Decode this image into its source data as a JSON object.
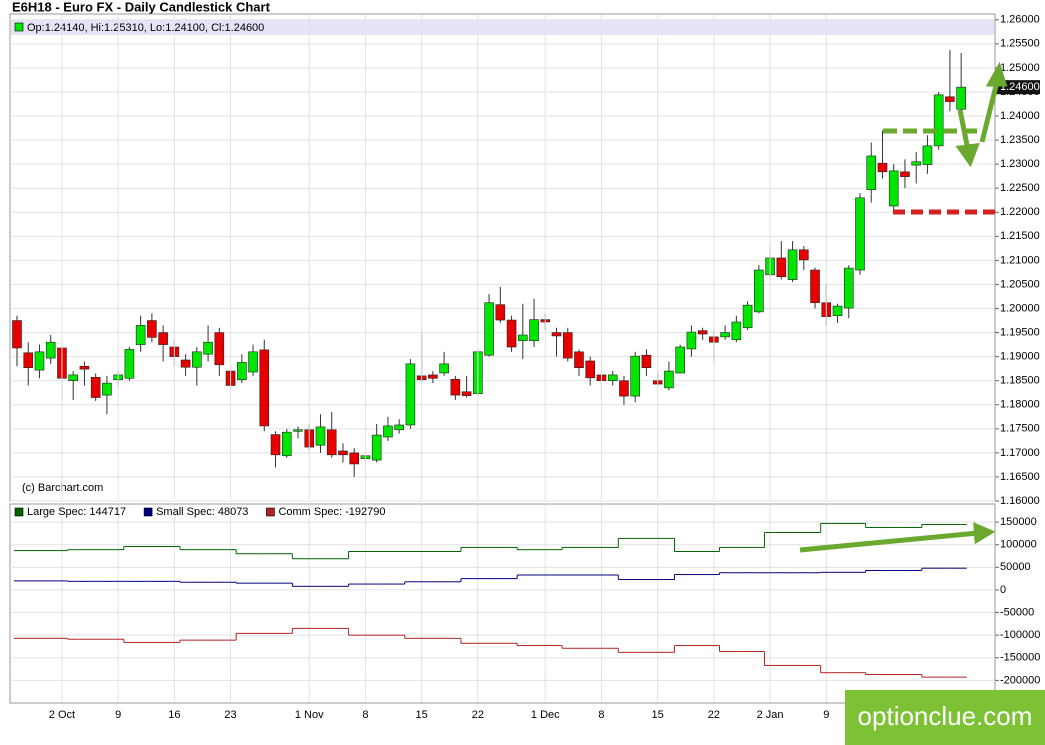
{
  "chart_data": [
    {
      "type": "candlestick",
      "title": "E6H18 - Euro FX - Daily Candlestick Chart",
      "legend": "Op:1.24140, Hi:1.25310, Lo:1.24100, Cl:1.24600",
      "source": "(c) Barchart.com",
      "last_price_label": "1.24600",
      "up_color": "#00e600",
      "down_color": "#e60000",
      "open": [
        1.1975,
        1.1908,
        1.1872,
        1.1897,
        1.1918,
        1.185,
        1.188,
        1.1857,
        1.182,
        1.1852,
        1.1855,
        1.1925,
        1.1975,
        1.195,
        1.192,
        1.1893,
        1.1878,
        1.1905,
        1.195,
        1.187,
        1.1852,
        1.1868,
        1.1914,
        1.1738,
        1.1694,
        1.1745,
        1.1748,
        1.1716,
        1.1748,
        1.1704,
        1.17,
        1.1688,
        1.1685,
        1.1733,
        1.1748,
        1.1758,
        1.186,
        1.1862,
        1.1866,
        1.1853,
        1.1827,
        1.1823,
        1.1903,
        1.2008,
        1.1976,
        1.1933,
        1.1933,
        1.1977,
        1.195,
        1.195,
        1.191,
        1.1891,
        1.1862,
        1.185,
        1.185,
        1.1818,
        1.1903,
        1.185,
        1.1835,
        1.1866,
        1.1916,
        1.1954,
        1.1941,
        1.1941,
        1.1935,
        1.196,
        1.1993,
        1.207,
        1.2105,
        1.206,
        1.2122,
        1.208,
        1.2012,
        1.1985,
        1.2001,
        1.208,
        1.2247,
        1.2302,
        1.2213,
        1.2284,
        1.2298,
        1.2299,
        1.2338,
        1.244,
        1.2414
      ],
      "high": [
        1.1985,
        1.193,
        1.1925,
        1.1945,
        1.193,
        1.187,
        1.189,
        1.1865,
        1.186,
        1.187,
        1.192,
        1.1985,
        1.199,
        1.1965,
        1.1935,
        1.1905,
        1.192,
        1.1965,
        1.196,
        1.188,
        1.1905,
        1.1925,
        1.1935,
        1.1745,
        1.175,
        1.1755,
        1.176,
        1.178,
        1.1785,
        1.172,
        1.171,
        1.17,
        1.176,
        1.1775,
        1.177,
        1.1895,
        1.195,
        1.187,
        1.191,
        1.186,
        1.186,
        1.1915,
        1.203,
        1.2045,
        1.1985,
        1.201,
        1.202,
        1.199,
        1.196,
        1.196,
        1.1915,
        1.19,
        1.188,
        1.187,
        1.186,
        1.191,
        1.1915,
        1.187,
        1.189,
        1.1925,
        1.1965,
        1.196,
        1.1955,
        1.1965,
        1.1985,
        1.2015,
        1.209,
        1.213,
        1.214,
        1.214,
        1.213,
        1.2085,
        1.205,
        1.201,
        1.209,
        1.224,
        1.2345,
        1.237,
        1.23,
        1.231,
        1.2325,
        1.236,
        1.245,
        1.2537,
        1.2531
      ],
      "low": [
        1.188,
        1.184,
        1.1855,
        1.1885,
        1.181,
        1.181,
        1.184,
        1.1808,
        1.178,
        1.184,
        1.185,
        1.191,
        1.193,
        1.189,
        1.188,
        1.186,
        1.184,
        1.189,
        1.186,
        1.183,
        1.1845,
        1.186,
        1.1745,
        1.167,
        1.169,
        1.173,
        1.1705,
        1.17,
        1.169,
        1.168,
        1.165,
        1.1675,
        1.168,
        1.1725,
        1.174,
        1.175,
        1.1845,
        1.1845,
        1.186,
        1.181,
        1.1815,
        1.182,
        1.19,
        1.197,
        1.191,
        1.1895,
        1.192,
        1.1955,
        1.19,
        1.189,
        1.186,
        1.184,
        1.181,
        1.184,
        1.18,
        1.1805,
        1.186,
        1.184,
        1.183,
        1.1865,
        1.19,
        1.1935,
        1.189,
        1.1935,
        1.193,
        1.1955,
        1.199,
        1.206,
        1.206,
        1.2055,
        1.208,
        1.2,
        1.1965,
        1.197,
        1.198,
        1.207,
        1.222,
        1.227,
        1.22,
        1.225,
        1.226,
        1.228,
        1.233,
        1.241,
        1.241
      ],
      "close": [
        1.1918,
        1.1877,
        1.191,
        1.193,
        1.1855,
        1.1862,
        1.1874,
        1.1815,
        1.1845,
        1.1862,
        1.1915,
        1.1965,
        1.194,
        1.1925,
        1.19,
        1.1878,
        1.191,
        1.193,
        1.1883,
        1.184,
        1.1888,
        1.191,
        1.1756,
        1.1696,
        1.1743,
        1.1748,
        1.1712,
        1.1754,
        1.1696,
        1.1696,
        1.1677,
        1.1694,
        1.1737,
        1.1756,
        1.1758,
        1.1885,
        1.1852,
        1.1855,
        1.1885,
        1.182,
        1.1819,
        1.191,
        1.2012,
        1.1976,
        1.192,
        1.1945,
        1.1977,
        1.1972,
        1.1943,
        1.1897,
        1.1877,
        1.1856,
        1.185,
        1.1862,
        1.1818,
        1.1901,
        1.1877,
        1.1843,
        1.187,
        1.192,
        1.1951,
        1.1947,
        1.193,
        1.195,
        1.1972,
        1.2007,
        1.208,
        1.2105,
        1.2066,
        1.2122,
        1.2101,
        1.2012,
        1.1983,
        1.2005,
        1.2084,
        1.223,
        1.2317,
        1.2284,
        1.2286,
        1.2274,
        1.2305,
        1.2338,
        1.2444,
        1.243,
        1.246
      ],
      "ylim": [
        1.16,
        1.2612
      ],
      "yticks": [
        {
          "value": 1.16,
          "label": "1.16000"
        },
        {
          "value": 1.165,
          "label": "1.16500"
        },
        {
          "value": 1.17,
          "label": "1.17000"
        },
        {
          "value": 1.175,
          "label": "1.17500"
        },
        {
          "value": 1.18,
          "label": "1.18000"
        },
        {
          "value": 1.185,
          "label": "1.18500"
        },
        {
          "value": 1.19,
          "label": "1.19000"
        },
        {
          "value": 1.195,
          "label": "1.19500"
        },
        {
          "value": 1.2,
          "label": "1.20000"
        },
        {
          "value": 1.205,
          "label": "1.20500"
        },
        {
          "value": 1.21,
          "label": "1.21000"
        },
        {
          "value": 1.215,
          "label": "1.21500"
        },
        {
          "value": 1.22,
          "label": "1.22000"
        },
        {
          "value": 1.225,
          "label": "1.22500"
        },
        {
          "value": 1.23,
          "label": "1.23000"
        },
        {
          "value": 1.235,
          "label": "1.23500"
        },
        {
          "value": 1.24,
          "label": "1.24000"
        },
        {
          "value": 1.245,
          "label": "1.24500"
        },
        {
          "value": 1.25,
          "label": "1.25000"
        },
        {
          "value": 1.255,
          "label": "1.25500"
        },
        {
          "value": 1.26,
          "label": "1.26000"
        }
      ],
      "grid": true
    },
    {
      "type": "step",
      "categories": [
        null,
        null,
        null,
        null,
        "2 Oct",
        null,
        null,
        null,
        null,
        "9",
        null,
        null,
        null,
        null,
        "16",
        null,
        null,
        null,
        null,
        "23",
        null,
        null,
        null,
        null,
        null,
        null,
        "1 Nov",
        null,
        null,
        null,
        null,
        "8",
        null,
        null,
        null,
        null,
        "15",
        null,
        null,
        null,
        null,
        "22",
        null,
        null,
        null,
        null,
        null,
        "1 Dec",
        null,
        null,
        null,
        null,
        "8",
        null,
        null,
        null,
        null,
        "15",
        null,
        null,
        null,
        null,
        "22",
        null,
        null,
        null,
        null,
        "2 Jan",
        null,
        null,
        null,
        null,
        "9",
        null,
        null,
        null,
        null,
        null,
        null,
        null,
        null,
        null,
        null,
        null,
        null
      ],
      "series": [
        {
          "name": "Large Spec: 144717",
          "color": "#006400",
          "values": [
            87000,
            87000,
            87000,
            87000,
            87000,
            89000,
            89000,
            89000,
            89000,
            89000,
            96000,
            96000,
            96000,
            96000,
            96000,
            89000,
            89000,
            89000,
            89000,
            89000,
            80000,
            80000,
            80000,
            80000,
            80000,
            69000,
            69000,
            69000,
            69000,
            69000,
            85000,
            85000,
            85000,
            85000,
            85000,
            85000,
            85000,
            85000,
            85000,
            85000,
            94000,
            94000,
            94000,
            94000,
            94000,
            89000,
            89000,
            89000,
            89000,
            94000,
            94000,
            94000,
            94000,
            94000,
            114000,
            114000,
            114000,
            114000,
            114000,
            85000,
            85000,
            85000,
            85000,
            94000,
            94000,
            94000,
            94000,
            127000,
            127000,
            127000,
            127000,
            127000,
            147000,
            147000,
            147000,
            147000,
            138000,
            138000,
            138000,
            138000,
            138000,
            144717,
            144717,
            144717,
            144717
          ]
        },
        {
          "name": "Small Spec: 48073",
          "color": "#000080",
          "values": [
            20000,
            20000,
            20000,
            20000,
            20000,
            19000,
            19000,
            19000,
            19000,
            19000,
            19000,
            19000,
            19000,
            19000,
            19000,
            17000,
            17000,
            17000,
            17000,
            17000,
            15000,
            15000,
            15000,
            15000,
            15000,
            8000,
            8000,
            8000,
            8000,
            8000,
            13000,
            13000,
            13000,
            13000,
            13000,
            18000,
            18000,
            18000,
            18000,
            18000,
            25000,
            25000,
            25000,
            25000,
            25000,
            33000,
            33000,
            33000,
            33000,
            33000,
            33000,
            33000,
            33000,
            33000,
            23000,
            23000,
            23000,
            23000,
            23000,
            34000,
            34000,
            34000,
            34000,
            38000,
            38000,
            38000,
            38000,
            38000,
            38000,
            38000,
            38000,
            38000,
            39000,
            39000,
            39000,
            39000,
            43000,
            43000,
            43000,
            43000,
            43000,
            48073,
            48073,
            48073,
            48073
          ]
        },
        {
          "name": "Comm Spec: -192790",
          "color": "#b22222",
          "values": [
            -107000,
            -107000,
            -107000,
            -107000,
            -107000,
            -109000,
            -109000,
            -109000,
            -109000,
            -109000,
            -116000,
            -116000,
            -116000,
            -116000,
            -116000,
            -111000,
            -111000,
            -111000,
            -111000,
            -111000,
            -96000,
            -96000,
            -96000,
            -96000,
            -96000,
            -85000,
            -85000,
            -85000,
            -85000,
            -85000,
            -100000,
            -100000,
            -100000,
            -100000,
            -100000,
            -107000,
            -107000,
            -107000,
            -107000,
            -107000,
            -118000,
            -118000,
            -118000,
            -118000,
            -118000,
            -123000,
            -123000,
            -123000,
            -123000,
            -129000,
            -129000,
            -129000,
            -129000,
            -129000,
            -138000,
            -138000,
            -138000,
            -138000,
            -138000,
            -123000,
            -123000,
            -123000,
            -123000,
            -136000,
            -136000,
            -136000,
            -136000,
            -167000,
            -167000,
            -167000,
            -167000,
            -167000,
            -183000,
            -183000,
            -183000,
            -183000,
            -187000,
            -187000,
            -187000,
            -187000,
            -187000,
            -192790,
            -192790,
            -192790,
            -192790
          ]
        }
      ],
      "ylim": [
        -250000,
        190000
      ],
      "yticks": [
        150000,
        100000,
        50000,
        0,
        -50000,
        -100000,
        -150000,
        -200000
      ],
      "grid": true
    },
    {
      "watermark": "optionclue.com"
    }
  ]
}
